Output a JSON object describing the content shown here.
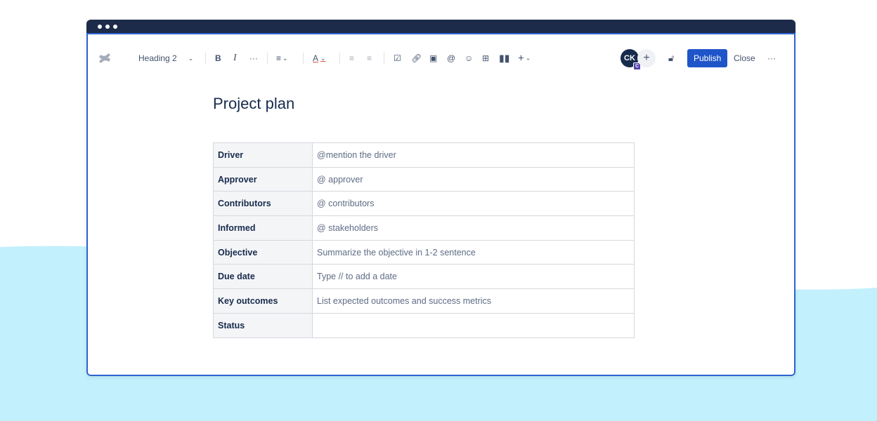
{
  "toolbar": {
    "text_style": "Heading 2",
    "publish_label": "Publish",
    "close_label": "Close",
    "avatar_initials": "CK",
    "avatar_badge": "C",
    "accent": "#1f55c9"
  },
  "page": {
    "title": "Project plan"
  },
  "table": [
    {
      "label": "Driver",
      "value": "@mention the driver"
    },
    {
      "label": "Approver",
      "value": "@ approver"
    },
    {
      "label": "Contributors",
      "value": "@ contributors"
    },
    {
      "label": "Informed",
      "value": "@ stakeholders"
    },
    {
      "label": "Objective",
      "value": "Summarize the objective in 1-2 sentence"
    },
    {
      "label": "Due date",
      "value": "Type // to add a date"
    },
    {
      "label": "Key outcomes",
      "value": "List expected outcomes and success metrics"
    },
    {
      "label": "Status",
      "value": ""
    }
  ]
}
